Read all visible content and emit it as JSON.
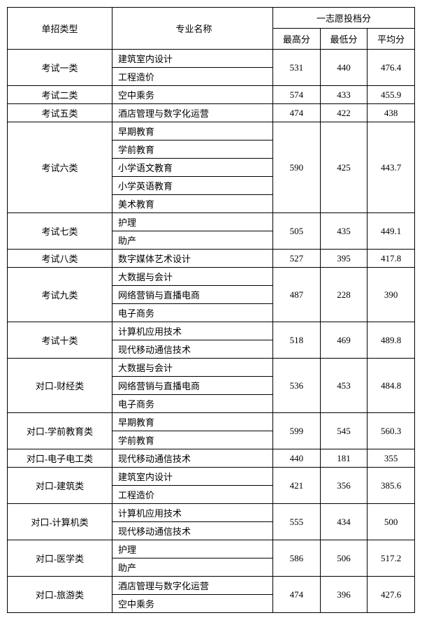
{
  "headers": {
    "type": "单招类型",
    "major": "专业名称",
    "group": "一志愿投档分",
    "max": "最高分",
    "min": "最低分",
    "avg": "平均分"
  },
  "groups": [
    {
      "type": "考试一类",
      "majors": [
        "建筑室内设计",
        "工程造价"
      ],
      "max": "531",
      "min": "440",
      "avg": "476.4"
    },
    {
      "type": "考试二类",
      "majors": [
        "空中乘务"
      ],
      "max": "574",
      "min": "433",
      "avg": "455.9"
    },
    {
      "type": "考试五类",
      "majors": [
        "酒店管理与数字化运营"
      ],
      "max": "474",
      "min": "422",
      "avg": "438"
    },
    {
      "type": "考试六类",
      "majors": [
        "早期教育",
        "学前教育",
        "小学语文教育",
        "小学英语教育",
        "美术教育"
      ],
      "max": "590",
      "min": "425",
      "avg": "443.7"
    },
    {
      "type": "考试七类",
      "majors": [
        "护理",
        "助产"
      ],
      "max": "505",
      "min": "435",
      "avg": "449.1"
    },
    {
      "type": "考试八类",
      "majors": [
        "数字媒体艺术设计"
      ],
      "max": "527",
      "min": "395",
      "avg": "417.8"
    },
    {
      "type": "考试九类",
      "majors": [
        "大数据与会计",
        "网络营销与直播电商",
        "电子商务"
      ],
      "max": "487",
      "min": "228",
      "avg": "390"
    },
    {
      "type": "考试十类",
      "majors": [
        "计算机应用技术",
        "现代移动通信技术"
      ],
      "max": "518",
      "min": "469",
      "avg": "489.8"
    },
    {
      "type": "对口-财经类",
      "majors": [
        "大数据与会计",
        "网络营销与直播电商",
        "电子商务"
      ],
      "max": "536",
      "min": "453",
      "avg": "484.8"
    },
    {
      "type": "对口-学前教育类",
      "majors": [
        "早期教育",
        "学前教育"
      ],
      "max": "599",
      "min": "545",
      "avg": "560.3"
    },
    {
      "type": "对口-电子电工类",
      "majors": [
        "现代移动通信技术"
      ],
      "max": "440",
      "min": "181",
      "avg": "355"
    },
    {
      "type": "对口-建筑类",
      "majors": [
        "建筑室内设计",
        "工程造价"
      ],
      "max": "421",
      "min": "356",
      "avg": "385.6"
    },
    {
      "type": "对口-计算机类",
      "majors": [
        "计算机应用技术",
        "现代移动通信技术"
      ],
      "max": "555",
      "min": "434",
      "avg": "500"
    },
    {
      "type": "对口-医学类",
      "majors": [
        "护理",
        "助产"
      ],
      "max": "586",
      "min": "506",
      "avg": "517.2"
    },
    {
      "type": "对口-旅游类",
      "majors": [
        "酒店管理与数字化运营",
        "空中乘务"
      ],
      "max": "474",
      "min": "396",
      "avg": "427.6"
    }
  ]
}
